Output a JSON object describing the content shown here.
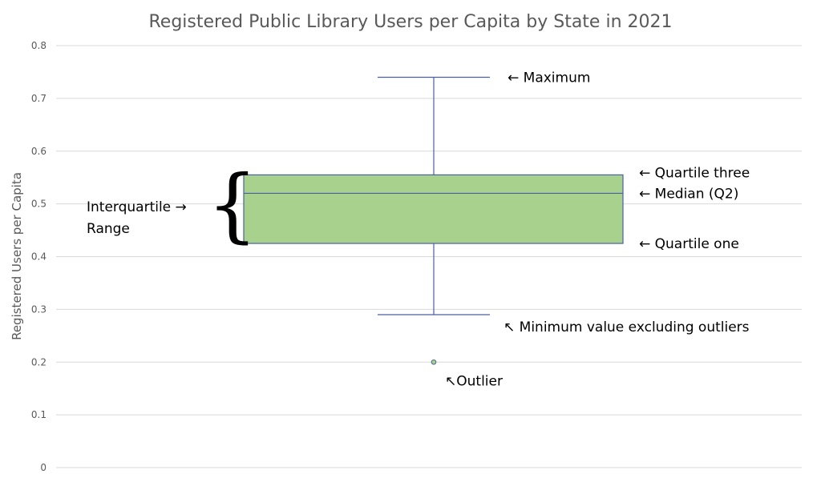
{
  "chart_data": {
    "type": "box",
    "title": "Registered Public Library Users per Capita by State in 2021",
    "ylabel": "Registered Users per Capita",
    "ylim": [
      0,
      0.8
    ],
    "yticks": [
      "0",
      "0.1",
      "0.2",
      "0.3",
      "0.4",
      "0.5",
      "0.6",
      "0.7",
      "0.8"
    ],
    "grid": true,
    "box": {
      "min": 0.29,
      "q1": 0.425,
      "median": 0.52,
      "q3": 0.555,
      "max": 0.74,
      "outliers": [
        0.2
      ]
    },
    "colors": {
      "box_fill": "#a9d18e",
      "box_stroke": "#4a5fa3",
      "grid": "#d9d9d9"
    },
    "annotations": {
      "maximum": "← Maximum",
      "q3": "← Quartile three",
      "median": "← Median (Q2)",
      "q1": "← Quartile one",
      "minimum": "↖ Minimum value excluding outliers",
      "outlier": "↖Outlier",
      "iqr_line1": "Interquartile →",
      "iqr_line2": "Range",
      "brace": "{"
    }
  }
}
